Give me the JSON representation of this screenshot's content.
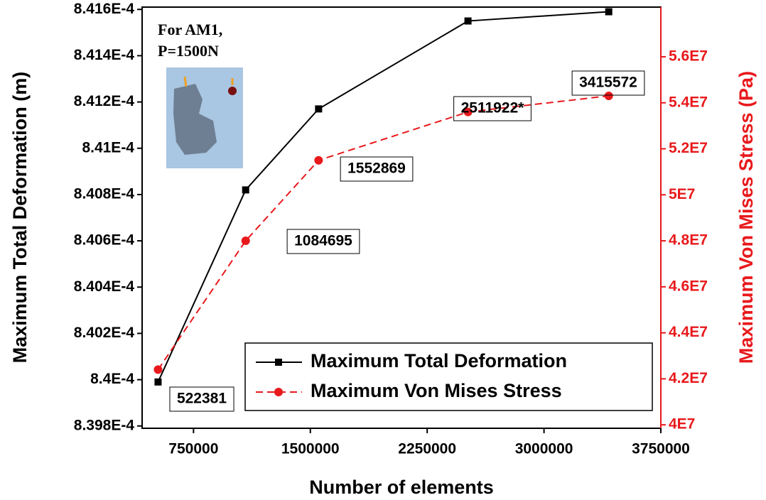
{
  "chart_data": {
    "type": "line",
    "annotations": [
      "For AM1,",
      "P=1500N"
    ],
    "x_label": "Number of elements",
    "y_label": "Maximum Total Deformation (m)",
    "y2_label": "Maximum Von Mises Stress (Pa)",
    "x": [
      522381,
      1084695,
      1552869,
      2511922,
      3415572
    ],
    "point_labels": [
      "522381",
      "1084695",
      "1552869",
      "2511922*",
      "3415572"
    ],
    "series": [
      {
        "name": "Maximum Total Deformation",
        "color": "#000000",
        "marker": "square",
        "dash": false,
        "values": [
          0.00083999,
          0.00084082,
          0.00084117,
          0.00084155,
          0.00084159
        ]
      },
      {
        "name": "Maximum Von Mises Stress",
        "color": "#e8191c",
        "marker": "circle",
        "dash": true,
        "axis": "y2",
        "values": [
          42400000,
          48000000,
          51500000,
          53600000,
          54300000
        ]
      }
    ],
    "xlim": [
      420000,
      3750000
    ],
    "xticks": [
      750000,
      1500000,
      2250000,
      3000000,
      3750000
    ],
    "ylim": [
      0.00083979,
      0.00084161
    ],
    "yticks": [
      {
        "value": 0.0008398,
        "label": "8.398E-4"
      },
      {
        "value": 0.00084,
        "label": "8.4E-4"
      },
      {
        "value": 0.0008402,
        "label": "8.402E-4"
      },
      {
        "value": 0.0008404,
        "label": "8.404E-4"
      },
      {
        "value": 0.0008406,
        "label": "8.406E-4"
      },
      {
        "value": 0.0008408,
        "label": "8.408E-4"
      },
      {
        "value": 0.000841,
        "label": "8.41E-4"
      },
      {
        "value": 0.0008412,
        "label": "8.412E-4"
      },
      {
        "value": 0.0008414,
        "label": "8.414E-4"
      },
      {
        "value": 0.0008416,
        "label": "8.416E-4"
      }
    ],
    "y2lim": [
      39850000,
      58160000
    ],
    "y2ticks": [
      {
        "value": 40000000,
        "label": "4E7"
      },
      {
        "value": 42000000,
        "label": "4.2E7"
      },
      {
        "value": 44000000,
        "label": "4.4E7"
      },
      {
        "value": 46000000,
        "label": "4.6E7"
      },
      {
        "value": 48000000,
        "label": "4.8E7"
      },
      {
        "value": 50000000,
        "label": "5E7"
      },
      {
        "value": 52000000,
        "label": "5.2E7"
      },
      {
        "value": 54000000,
        "label": "5.4E7"
      },
      {
        "value": 56000000,
        "label": "5.6E7"
      }
    ],
    "y2_color": "#e8191c",
    "legend": "lower right"
  }
}
